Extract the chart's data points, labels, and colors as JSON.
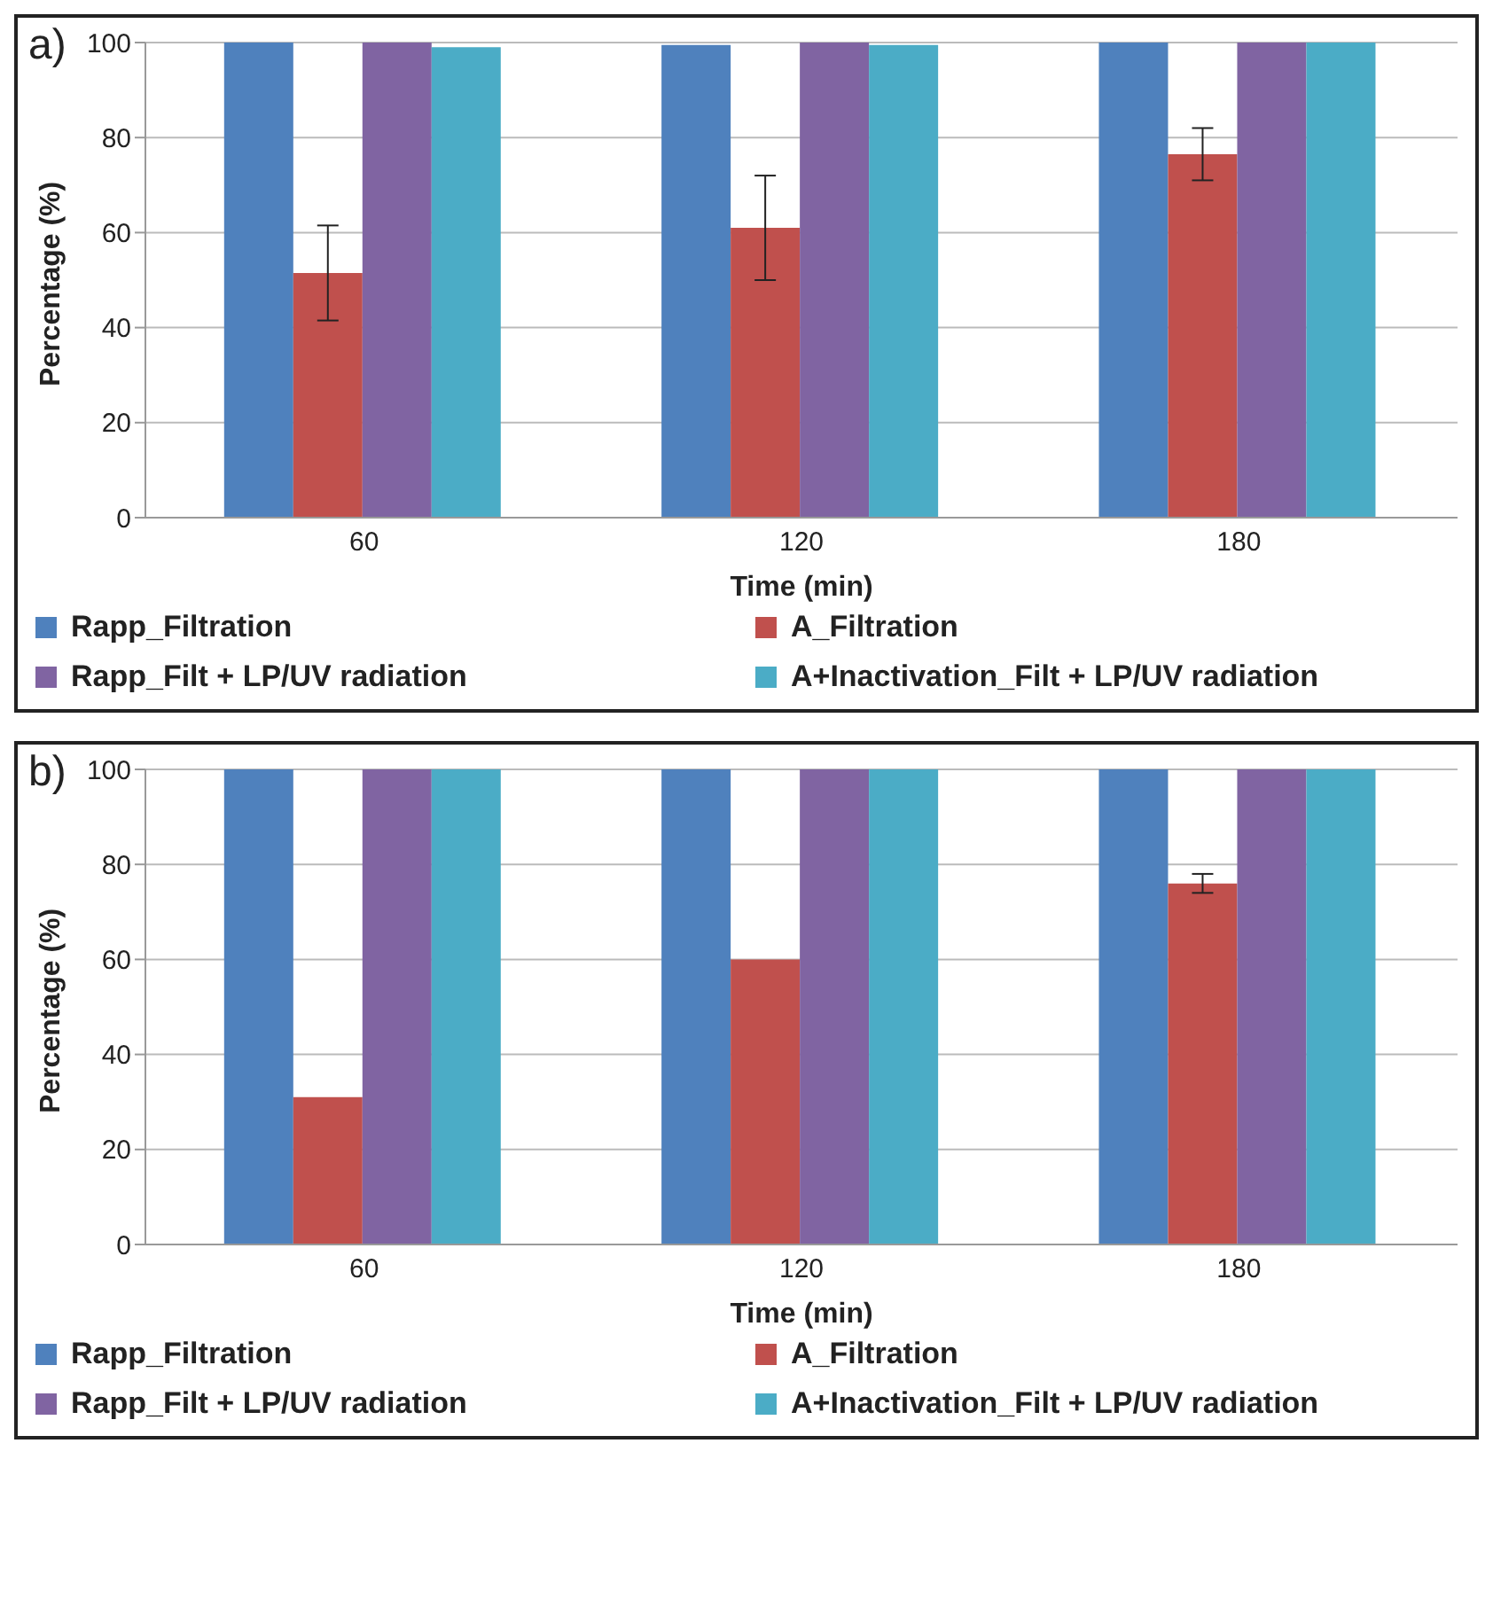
{
  "chart_data": [
    {
      "type": "bar",
      "title": "a)",
      "xlabel": "Time (min)",
      "ylabel": "Percentage (%)",
      "categories": [
        "60",
        "120",
        "180"
      ],
      "ylim": [
        0,
        100
      ],
      "yticks": [
        0,
        20,
        40,
        60,
        80,
        100
      ],
      "grid": "y",
      "legend": "bottom",
      "series": [
        {
          "name": "Rapp_Filtration",
          "color": "#4f81bd",
          "values": [
            100,
            99.5,
            100
          ]
        },
        {
          "name": "A_Filtration",
          "color": "#c0504d",
          "values": [
            51.5,
            61,
            76.5
          ],
          "errors": [
            10,
            11,
            5.5
          ]
        },
        {
          "name": "Rapp_Filt + LP/UV radiation",
          "color": "#8064a2",
          "values": [
            100,
            100,
            100
          ]
        },
        {
          "name": "A+Inactivation_Filt + LP/UV radiation",
          "color": "#4bacc6",
          "values": [
            99,
            99.5,
            100
          ]
        }
      ]
    },
    {
      "type": "bar",
      "title": "b)",
      "xlabel": "Time (min)",
      "ylabel": "Percentage (%)",
      "categories": [
        "60",
        "120",
        "180"
      ],
      "ylim": [
        0,
        100
      ],
      "yticks": [
        0,
        20,
        40,
        60,
        80,
        100
      ],
      "grid": "y",
      "legend": "bottom",
      "series": [
        {
          "name": "Rapp_Filtration",
          "color": "#4f81bd",
          "values": [
            100,
            100,
            100
          ]
        },
        {
          "name": "A_Filtration",
          "color": "#c0504d",
          "values": [
            31,
            60,
            76
          ],
          "errors": [
            null,
            null,
            2
          ]
        },
        {
          "name": "Rapp_Filt + LP/UV radiation",
          "color": "#8064a2",
          "values": [
            100,
            100,
            100
          ]
        },
        {
          "name": "A+Inactivation_Filt + LP/UV radiation",
          "color": "#4bacc6",
          "values": [
            100,
            100,
            100
          ]
        }
      ]
    }
  ]
}
